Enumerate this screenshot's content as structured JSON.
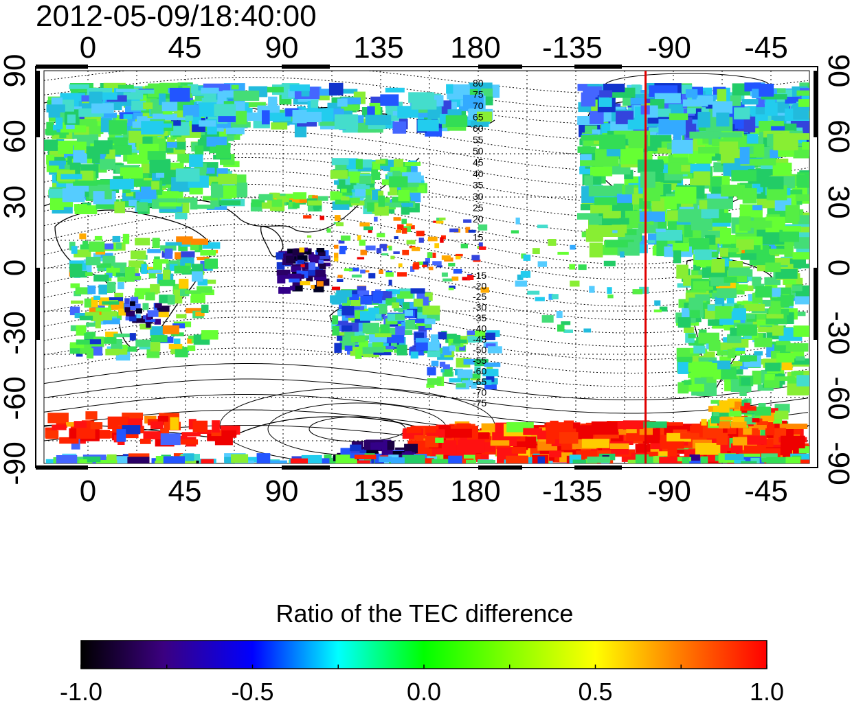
{
  "title": "2012-05-09/18:40:00",
  "map": {
    "lon_ticks": [
      0,
      45,
      90,
      135,
      180,
      -135,
      -90,
      -45
    ],
    "lat_ticks": [
      90,
      60,
      30,
      0,
      -30,
      -60,
      -90
    ],
    "red_meridian_lon": -101,
    "contour_labels_north": [
      "80",
      "75",
      "70",
      "65",
      "60",
      "55",
      "50",
      "45",
      "40",
      "35",
      "30",
      "25",
      "20",
      "15"
    ],
    "contour_labels_south": [
      "-15",
      "-20",
      "-25",
      "-30",
      "-35",
      "-40",
      "-45",
      "-50",
      "-55",
      "-60",
      "-65",
      "-70",
      "-75"
    ]
  },
  "colorbar": {
    "title": "Ratio of the TEC difference",
    "ticks": [
      "-1.0",
      "-0.5",
      "0.0",
      "0.5",
      "1.0"
    ],
    "range": [
      -1.0,
      1.0
    ],
    "colors": [
      "#000000",
      "#3b0080",
      "#0000ff",
      "#00ffff",
      "#00ff00",
      "#ffff00",
      "#ff8000",
      "#ff0000"
    ]
  }
}
